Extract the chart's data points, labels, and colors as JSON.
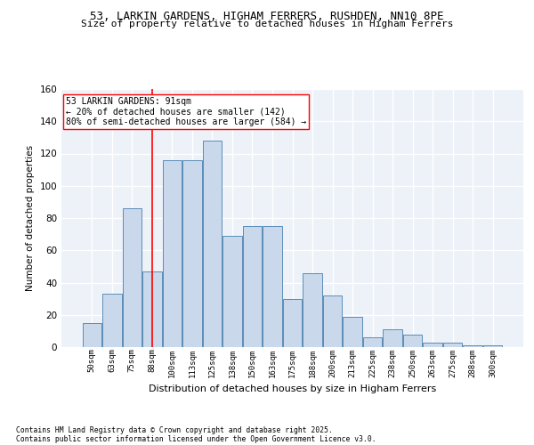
{
  "title1": "53, LARKIN GARDENS, HIGHAM FERRERS, RUSHDEN, NN10 8PE",
  "title2": "Size of property relative to detached houses in Higham Ferrers",
  "xlabel": "Distribution of detached houses by size in Higham Ferrers",
  "ylabel": "Number of detached properties",
  "categories": [
    "50sqm",
    "63sqm",
    "75sqm",
    "88sqm",
    "100sqm",
    "113sqm",
    "125sqm",
    "138sqm",
    "150sqm",
    "163sqm",
    "175sqm",
    "188sqm",
    "200sqm",
    "213sqm",
    "225sqm",
    "238sqm",
    "250sqm",
    "263sqm",
    "275sqm",
    "288sqm",
    "300sqm"
  ],
  "bar_heights": [
    15,
    33,
    86,
    47,
    116,
    116,
    128,
    69,
    75,
    75,
    30,
    46,
    32,
    19,
    6,
    11,
    8,
    3,
    3,
    1,
    1
  ],
  "bar_color": "#c9d9eb",
  "bar_edge_color": "#5b8db8",
  "vline_color": "red",
  "annotation_text": "53 LARKIN GARDENS: 91sqm\n← 20% of detached houses are smaller (142)\n80% of semi-detached houses are larger (584) →",
  "ylim": [
    0,
    160
  ],
  "yticks": [
    0,
    20,
    40,
    60,
    80,
    100,
    120,
    140,
    160
  ],
  "background_color": "#edf2f9",
  "grid_color": "#ffffff",
  "footer1": "Contains HM Land Registry data © Crown copyright and database right 2025.",
  "footer2": "Contains public sector information licensed under the Open Government Licence v3.0.",
  "title_fontsize": 9,
  "subtitle_fontsize": 8,
  "vline_pos": 3.0
}
